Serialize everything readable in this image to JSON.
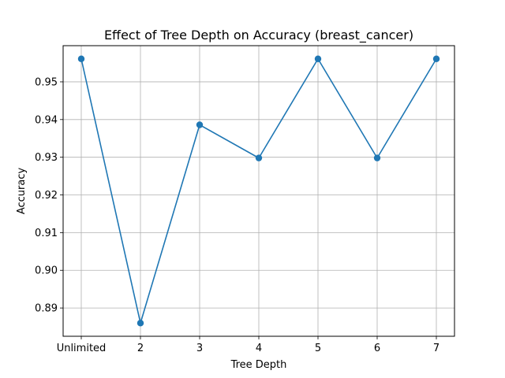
{
  "chart_data": {
    "type": "line",
    "title": "Effect of Tree Depth on Accuracy (breast_cancer)",
    "xlabel": "Tree Depth",
    "ylabel": "Accuracy",
    "categories": [
      "Unlimited",
      "2",
      "3",
      "4",
      "5",
      "6",
      "7"
    ],
    "series": [
      {
        "values": [
          0.9561,
          0.886,
          0.9386,
          0.9298,
          0.9561,
          0.9298,
          0.9561
        ]
      }
    ],
    "ylim": [
      0.8825,
      0.9596
    ],
    "yticks": [
      "0.89",
      "0.90",
      "0.91",
      "0.92",
      "0.93",
      "0.94",
      "0.95"
    ],
    "grid": true,
    "line_color": "#1f77b4",
    "marker": "circle"
  }
}
